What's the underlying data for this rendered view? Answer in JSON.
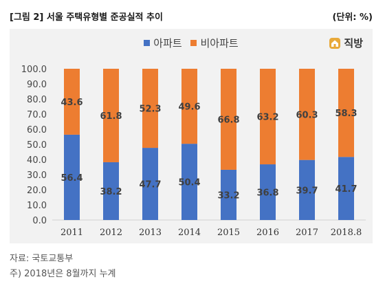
{
  "header": {
    "title": "[그림 2] 서울 주택유형별 준공실적 추이",
    "unit": "(단위: %)"
  },
  "logo": {
    "text": "직방",
    "icon": "house-icon",
    "color": "#e8a93a"
  },
  "footer": {
    "source": "자료: 국토교통부",
    "note": "주) 2018년은 8월까지 누계"
  },
  "colors": {
    "apartment": "#4472c4",
    "non_apartment": "#ed7d31",
    "panel": "#f2f2f2"
  },
  "chart_data": {
    "type": "bar",
    "stacked": true,
    "categories": [
      "2011",
      "2012",
      "2013",
      "2014",
      "2015",
      "2016",
      "2017",
      "2018.8"
    ],
    "series": [
      {
        "name": "아파트",
        "values": [
          56.4,
          38.2,
          47.7,
          50.4,
          33.2,
          36.8,
          39.7,
          41.7
        ]
      },
      {
        "name": "비아파트",
        "values": [
          43.6,
          61.8,
          52.3,
          49.6,
          66.8,
          63.2,
          60.3,
          58.3
        ]
      }
    ],
    "yticks": [
      "0.0",
      "10.0",
      "20.0",
      "30.0",
      "40.0",
      "50.0",
      "60.0",
      "70.0",
      "80.0",
      "90.0",
      "100.0"
    ],
    "ylim": [
      0,
      100
    ],
    "legend": "top-center",
    "grid": false
  }
}
